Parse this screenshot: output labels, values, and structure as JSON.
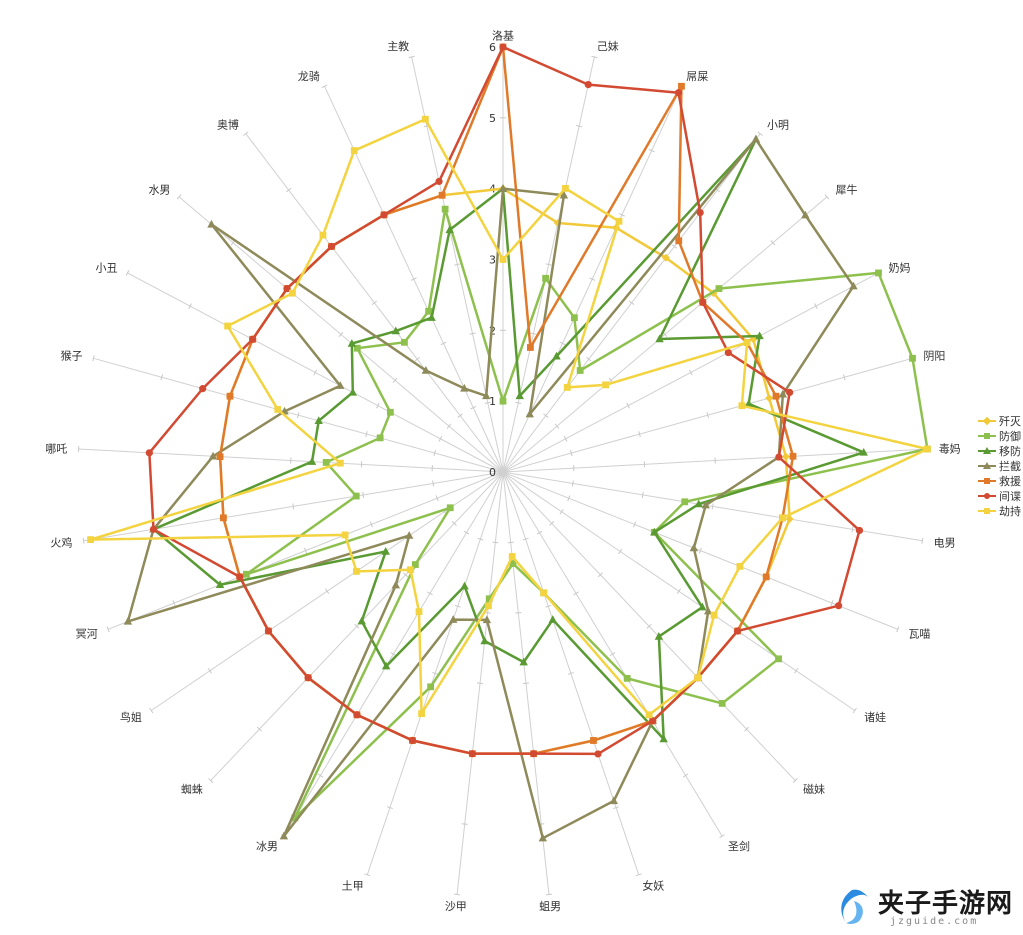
{
  "chart_data": {
    "type": "radar",
    "axes": [
      "洛基",
      "己妹",
      "屌屎",
      "小明",
      "犀牛",
      "奶妈",
      "阴阳",
      "毒妈",
      "电男",
      "瓦喵",
      "诸娃",
      "磁妹",
      "圣剑",
      "女妖",
      "蛆男",
      "沙甲",
      "土甲",
      "冰男",
      "蜘蛛",
      "鸟姐",
      "冥河",
      "火鸡",
      "哪吒",
      "猴子",
      "小丑",
      "水男",
      "奥博",
      "龙骑",
      "主教"
    ],
    "rmax": 6,
    "ticks": [
      0,
      1,
      2,
      3,
      4,
      5,
      6
    ],
    "legend_position": "right",
    "series": [
      {
        "name": "歼灭",
        "color": "#f2c938",
        "marker": "diamond",
        "values": [
          4,
          3.6,
          3.8,
          3.8,
          3.9,
          4,
          3.9,
          4,
          4.1,
          4,
          4,
          4,
          4.1,
          4,
          4,
          4,
          4,
          4,
          4,
          4,
          4,
          4,
          4,
          4,
          4,
          4,
          4,
          4,
          4
        ]
      },
      {
        "name": "防御",
        "color": "#8ec04e",
        "marker": "square",
        "values": [
          1,
          2.8,
          2.4,
          1.8,
          4,
          6,
          6,
          6,
          2.6,
          2.3,
          4.7,
          4.5,
          3.4,
          1.8,
          1.3,
          1.8,
          3.2,
          5.7,
          1.8,
          0.9,
          3.9,
          2.1,
          2.5,
          1.8,
          1.8,
          2.7,
          2.3,
          2.5,
          3.8
        ]
      },
      {
        "name": "移防",
        "color": "#5a9a32",
        "marker": "triangle",
        "values": [
          4,
          1.1,
          1.8,
          5.9,
          2.9,
          4.1,
          3.6,
          5.1,
          2.8,
          2.3,
          3.4,
          3.2,
          4.4,
          2.2,
          2.7,
          2.4,
          1.7,
          3.2,
          2.9,
          2,
          4.3,
          5,
          2.7,
          2.7,
          2.4,
          2.8,
          2.5,
          2.4,
          3.5
        ]
      },
      {
        "name": "拦截",
        "color": "#8e8a5a",
        "marker": "triangle",
        "values": [
          4,
          4,
          0.9,
          5.9,
          5.6,
          5.6,
          4.1,
          3.9,
          2.9,
          2.9,
          3.5,
          4,
          4.1,
          4.9,
          5.2,
          2.1,
          2.2,
          6,
          2.2,
          1.6,
          5.7,
          5,
          4.1,
          3.2,
          2.6,
          5.4,
          1.8,
          1.3,
          1.1
        ]
      },
      {
        "name": "救援",
        "color": "#e07a2a",
        "marker": "square",
        "values": [
          6,
          1.8,
          6,
          4.1,
          3.7,
          3.9,
          4,
          4.1,
          4,
          4,
          4,
          4,
          4.1,
          4,
          4,
          4,
          4,
          4,
          4,
          4,
          4,
          4,
          4,
          4,
          4,
          4,
          4,
          4,
          4
        ]
      },
      {
        "name": "间谍",
        "color": "#d24a32",
        "marker": "circle",
        "values": [
          6,
          5.6,
          5.9,
          4.6,
          3.7,
          3.6,
          4.2,
          3.9,
          5.1,
          5.1,
          4,
          4,
          4.1,
          4.2,
          4,
          4,
          4,
          4,
          4,
          4,
          4,
          5,
          5,
          4.4,
          4,
          4,
          4,
          4,
          4.2
        ]
      },
      {
        "name": "劫持",
        "color": "#f3d440",
        "marker": "square",
        "values": [
          3,
          4.1,
          3.9,
          1.5,
          1.9,
          3.9,
          3.5,
          6,
          4,
          3.6,
          3.6,
          4,
          4,
          1.8,
          1.2,
          1.9,
          3.6,
          2.3,
          1.9,
          2.5,
          2.4,
          5.9,
          2.3,
          3.3,
          4.4,
          3.9,
          4.2,
          5,
          5.1
        ]
      }
    ]
  },
  "watermark": {
    "title": "夹子手游网",
    "subtitle": "jzguide.com",
    "logo_color": "#2a8be0"
  }
}
